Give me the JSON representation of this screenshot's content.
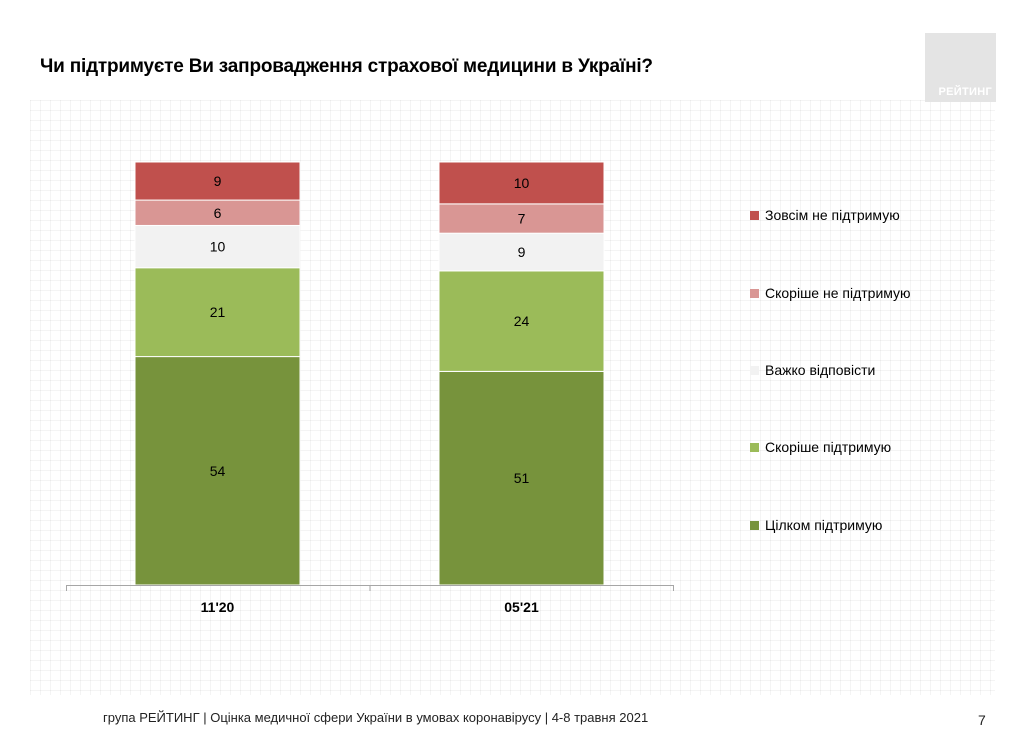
{
  "slide": {
    "title": "Чи підтримуєте Ви запровадження страхової медицини в Україні?",
    "logo_text": "РЕЙТИНГ",
    "footer": "група РЕЙТИНГ  |  Оцінка медичної сфери України в умовах коронавірусу  | 4-8 травня 2021",
    "page_number": "7"
  },
  "chart_data": {
    "type": "bar",
    "stacked": true,
    "categories": [
      "11'20",
      "05'21"
    ],
    "series": [
      {
        "name": "Цілком підтримую",
        "color": "#77933c",
        "values": [
          54,
          51
        ]
      },
      {
        "name": "Скоріше підтримую",
        "color": "#9bbb59",
        "values": [
          21,
          24
        ]
      },
      {
        "name": "Важко відповісти",
        "color": "#f2f2f2",
        "values": [
          10,
          9
        ]
      },
      {
        "name": "Скоріше не підтримую",
        "color": "#d99694",
        "values": [
          6,
          7
        ]
      },
      {
        "name": "Зовсім не підтримую",
        "color": "#c0504d",
        "values": [
          9,
          10
        ]
      }
    ],
    "legend_order": [
      "Зовсім не підтримую",
      "Скоріше не підтримую",
      "Важко відповісти",
      "Скоріше підтримую",
      "Цілком підтримую"
    ],
    "legend_position": "right",
    "ylim": [
      0,
      100
    ],
    "grid": false
  }
}
